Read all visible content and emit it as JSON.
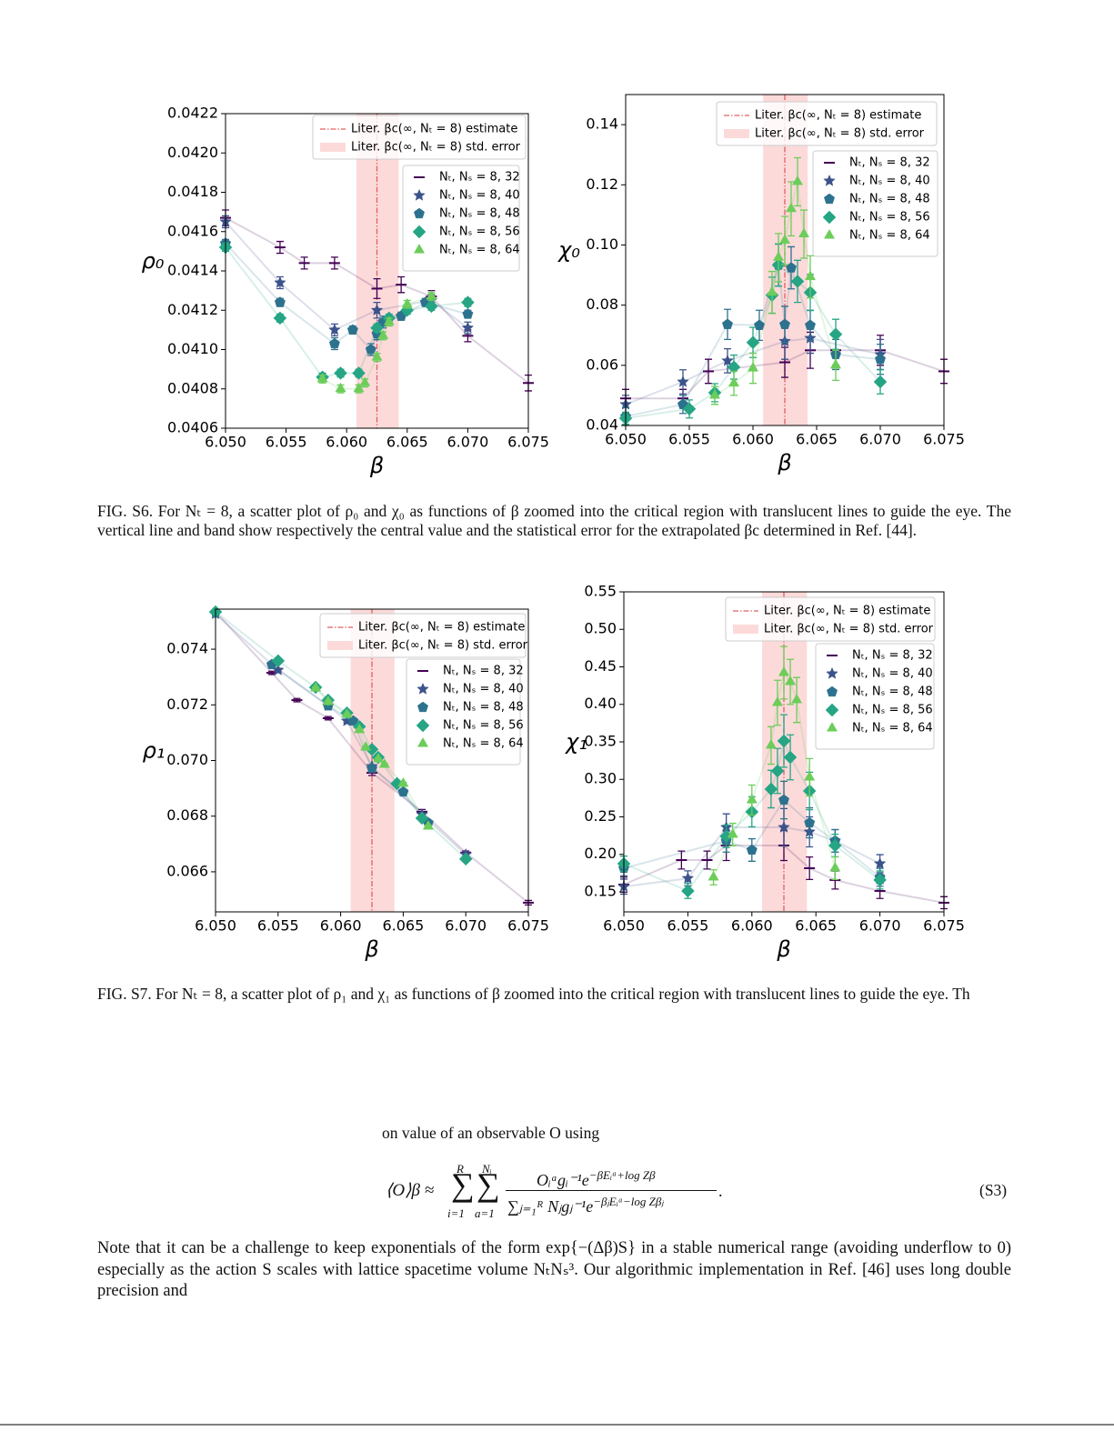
{
  "chart_data": [
    {
      "type": "scatter",
      "xlabel": "β",
      "ylabel": "ρ₀",
      "xlim": [
        6.05,
        6.075
      ],
      "ylim": [
        0.0406,
        0.0422
      ],
      "xticks": [
        {
          "value": 6.05,
          "label": "6.050"
        },
        6.055,
        {
          "value": 6.06,
          "label": "6.060"
        },
        6.065,
        {
          "value": 6.07,
          "label": "6.070"
        },
        6.075
      ],
      "yticks": [
        0.0406,
        0.0408,
        {
          "value": 0.041,
          "label": "0.0410"
        },
        0.0412,
        0.0414,
        0.0416,
        0.0418,
        {
          "value": 0.042,
          "label": "0.0420"
        },
        0.0422
      ],
      "legend": "upper right",
      "reference": {
        "label": "Liter. βc(∞, Nₜ = 8) estimate",
        "value": 6.0625,
        "color": "#e06060"
      },
      "band": {
        "label": "Liter. βc(∞, Nₜ = 8) std. error",
        "range": [
          6.0608,
          6.0643
        ],
        "color": "#fcdada"
      },
      "series": [
        {
          "name": "Nₜ, Nₛ = 8, 32",
          "color": "#440154",
          "marker": "hline",
          "x": [
            6.05,
            6.0545,
            6.0565,
            6.059,
            6.0625,
            6.0645,
            6.067,
            6.07,
            6.075
          ],
          "values": [
            0.04167,
            0.04152,
            0.04144,
            0.04144,
            0.04131,
            0.04133,
            0.04127,
            0.04107,
            0.04083
          ],
          "errors": [
            4e-05,
            3e-05,
            3e-05,
            3e-05,
            5e-05,
            4e-05,
            3e-05,
            3e-05,
            4e-05
          ]
        },
        {
          "name": "Nₜ, Nₛ = 8, 40",
          "color": "#3b528b",
          "marker": "star",
          "x": [
            6.05,
            6.0545,
            6.059,
            6.0625,
            6.067,
            6.07
          ],
          "values": [
            0.04165,
            0.04134,
            0.0411,
            0.0412,
            0.04125,
            0.04111
          ],
          "errors": [
            3e-05,
            3e-05,
            3e-05,
            4e-05,
            3e-05,
            3e-05
          ]
        },
        {
          "name": "Nₜ, Nₛ = 8, 48",
          "color": "#2c728e",
          "marker": "pentagon",
          "x": [
            6.05,
            6.0545,
            6.059,
            6.0605,
            6.062,
            6.0625,
            6.063,
            6.0645,
            6.0665,
            6.07
          ],
          "values": [
            0.04154,
            0.04124,
            0.04103,
            0.0411,
            0.041,
            0.04108,
            0.04114,
            0.04117,
            0.04124,
            0.04118
          ],
          "errors": [
            2e-05,
            2e-05,
            3e-05,
            2e-05,
            3e-05,
            3e-05,
            3e-05,
            2e-05,
            2e-05,
            2e-05
          ]
        },
        {
          "name": "Nₜ, Nₛ = 8, 56",
          "color": "#25a584",
          "marker": "diamond",
          "x": [
            6.05,
            6.0545,
            6.058,
            6.0595,
            6.061,
            6.0625,
            6.0635,
            6.065,
            6.067,
            6.07
          ],
          "values": [
            0.04152,
            0.04116,
            0.04086,
            0.04088,
            0.04088,
            0.04111,
            0.04116,
            0.0412,
            0.04122,
            0.04124
          ],
          "errors": [
            2e-05,
            2e-05,
            2e-05,
            2e-05,
            2e-05,
            2e-05,
            2e-05,
            2e-05,
            2e-05,
            2e-05
          ]
        },
        {
          "name": "Nₜ, Nₛ = 8, 64",
          "color": "#6ccd5a",
          "marker": "triangle",
          "x": [
            6.058,
            6.0595,
            6.061,
            6.0615,
            6.0625,
            6.063,
            6.0635,
            6.065,
            6.067
          ],
          "values": [
            0.04085,
            0.0408,
            0.0408,
            0.04083,
            0.04096,
            0.04107,
            0.04114,
            0.04123,
            0.04127
          ],
          "errors": [
            2e-05,
            2e-05,
            2e-05,
            2e-05,
            2e-05,
            2e-05,
            2e-05,
            2e-05,
            2e-05
          ]
        }
      ]
    },
    {
      "type": "scatter",
      "xlabel": "β",
      "ylabel": "χ₀",
      "xlim": [
        6.05,
        6.075
      ],
      "ylim": [
        0.04,
        0.15
      ],
      "xticks": [
        {
          "value": 6.05,
          "label": "6.050"
        },
        6.055,
        {
          "value": 6.06,
          "label": "6.060"
        },
        6.065,
        {
          "value": 6.07,
          "label": "6.070"
        },
        6.075
      ],
      "yticks": [
        0.04,
        0.06,
        0.08,
        {
          "value": 0.1,
          "label": "0.10"
        },
        0.12,
        0.14
      ],
      "legend": "upper right",
      "reference": {
        "label": "Liter. βc(∞, Nₜ = 8) estimate",
        "value": 6.0625,
        "color": "#e06060"
      },
      "band": {
        "label": "Liter. βc(∞, Nₜ = 8) std. error",
        "range": [
          6.0608,
          6.0643
        ],
        "color": "#fcdada"
      },
      "series": [
        {
          "name": "Nₜ, Nₛ = 8, 32",
          "color": "#440154",
          "marker": "hline",
          "x": [
            6.05,
            6.0545,
            6.0565,
            6.0625,
            6.0645,
            6.0665,
            6.07,
            6.075
          ],
          "values": [
            0.049,
            0.049,
            0.058,
            0.061,
            0.065,
            0.065,
            0.065,
            0.058
          ],
          "errors": [
            0.003,
            0.003,
            0.004,
            0.005,
            0.006,
            0.005,
            0.005,
            0.004
          ]
        },
        {
          "name": "Nₜ, Nₛ = 8, 40",
          "color": "#3b528b",
          "marker": "star",
          "x": [
            6.05,
            6.0545,
            6.058,
            6.0625,
            6.0645,
            6.07
          ],
          "values": [
            0.047,
            0.0545,
            0.0615,
            0.068,
            0.069,
            0.0636
          ],
          "errors": [
            0.003,
            0.004,
            0.004,
            0.006,
            0.005,
            0.005
          ]
        },
        {
          "name": "Nₜ, Nₛ = 8, 48",
          "color": "#2c728e",
          "marker": "pentagon",
          "x": [
            6.05,
            6.0545,
            6.058,
            6.0605,
            6.062,
            6.0625,
            6.063,
            6.0645,
            6.0665,
            6.07
          ],
          "values": [
            0.043,
            0.047,
            0.0736,
            0.0733,
            0.0933,
            0.0736,
            0.0924,
            0.0733,
            0.0636,
            0.062
          ],
          "errors": [
            0.003,
            0.003,
            0.005,
            0.005,
            0.007,
            0.006,
            0.007,
            0.005,
            0.005,
            0.005
          ]
        },
        {
          "name": "Nₜ, Nₛ = 8, 56",
          "color": "#25a584",
          "marker": "diamond",
          "x": [
            6.05,
            6.055,
            6.057,
            6.0585,
            6.06,
            6.0615,
            6.062,
            6.0635,
            6.0645,
            6.0665,
            6.07
          ],
          "values": [
            0.0424,
            0.0455,
            0.0509,
            0.0594,
            0.0676,
            0.0833,
            0.0933,
            0.0879,
            0.0842,
            0.0703,
            0.0545
          ],
          "errors": [
            0.002,
            0.003,
            0.003,
            0.004,
            0.005,
            0.006,
            0.007,
            0.007,
            0.006,
            0.005,
            0.004
          ]
        },
        {
          "name": "Nₜ, Nₛ = 8, 64",
          "color": "#6ccd5a",
          "marker": "triangle",
          "x": [
            6.057,
            6.0585,
            6.06,
            6.0615,
            6.062,
            6.0625,
            6.063,
            6.0635,
            6.064,
            6.0645,
            6.0665
          ],
          "values": [
            0.05,
            0.054,
            0.059,
            0.0842,
            0.0958,
            0.1015,
            0.112,
            0.121,
            0.1036,
            0.0894,
            0.06
          ],
          "errors": [
            0.003,
            0.004,
            0.005,
            0.007,
            0.008,
            0.008,
            0.009,
            0.008,
            0.008,
            0.007,
            0.005
          ]
        }
      ]
    },
    {
      "type": "scatter",
      "xlabel": "β",
      "ylabel": "ρ₁",
      "xlim": [
        6.05,
        6.075
      ],
      "ylim": [
        0.06456,
        0.07544
      ],
      "xticks": [
        {
          "value": 6.05,
          "label": "6.050"
        },
        6.055,
        {
          "value": 6.06,
          "label": "6.060"
        },
        6.065,
        {
          "value": 6.07,
          "label": "6.070"
        },
        6.075
      ],
      "yticks": [
        0.066,
        0.068,
        {
          "value": 0.07,
          "label": "0.070"
        },
        0.072,
        0.074
      ],
      "legend": "upper right",
      "reference": {
        "label": "Liter. βc(∞, Nₜ = 8) estimate",
        "value": 6.0625,
        "color": "#e06060"
      },
      "band": {
        "label": "Liter. βc(∞, Nₜ = 8) std. error",
        "range": [
          6.0608,
          6.0643
        ],
        "color": "#fcdada"
      },
      "series": [
        {
          "name": "Nₜ, Nₛ = 8, 32",
          "color": "#440154",
          "marker": "hline",
          "x": [
            6.05,
            6.0545,
            6.0565,
            6.059,
            6.0625,
            6.0665,
            6.07,
            6.075
          ],
          "values": [
            0.07534,
            0.07315,
            0.07217,
            0.07152,
            0.06956,
            0.06816,
            0.06669,
            0.06489
          ],
          "errors": [
            8e-05,
            6e-05,
            6e-05,
            6e-05,
            0.0001,
            8e-05,
            6e-05,
            8e-05
          ]
        },
        {
          "name": "Nₜ, Nₛ = 8, 40",
          "color": "#3b528b",
          "marker": "star",
          "x": [
            6.05,
            6.055,
            6.059,
            6.0605,
            6.0625,
            6.0665,
            6.07
          ],
          "values": [
            0.07527,
            0.07325,
            0.07197,
            0.07142,
            0.06979,
            0.06806,
            0.06662
          ],
          "errors": [
            6e-05,
            6e-05,
            6e-05,
            6e-05,
            6e-05,
            6e-05,
            6e-05
          ]
        },
        {
          "name": "Nₜ, Nₛ = 8, 48",
          "color": "#2c728e",
          "marker": "pentagon",
          "x": [
            6.0545,
            6.059,
            6.061,
            6.0625,
            6.065,
            6.067
          ],
          "values": [
            0.07345,
            0.07197,
            0.07142,
            0.06972,
            0.06887,
            0.06776
          ],
          "errors": [
            5e-05,
            5e-05,
            5e-05,
            5e-05,
            5e-05,
            5e-05
          ]
        },
        {
          "name": "Nₜ, Nₛ = 8, 56",
          "color": "#25a584",
          "marker": "diamond",
          "x": [
            6.05,
            6.055,
            6.058,
            6.059,
            6.0605,
            6.0615,
            6.0625,
            6.063,
            6.0645,
            6.0665,
            6.07
          ],
          "values": [
            0.07534,
            0.07358,
            0.07263,
            0.07217,
            0.07171,
            0.07122,
            0.0704,
            0.07011,
            0.06917,
            0.06793,
            0.06646
          ],
          "errors": [
            4e-05,
            4e-05,
            4e-05,
            4e-05,
            4e-05,
            4e-05,
            4e-05,
            4e-05,
            4e-05,
            4e-05,
            4e-05
          ]
        },
        {
          "name": "Nₜ, Nₛ = 8, 64",
          "color": "#6ccd5a",
          "marker": "triangle",
          "x": [
            6.058,
            6.059,
            6.0605,
            6.0615,
            6.062,
            6.063,
            6.0635,
            6.065,
            6.067
          ],
          "values": [
            0.0726,
            0.07211,
            0.07165,
            0.0711,
            0.07047,
            0.07005,
            0.06985,
            0.06917,
            0.06763
          ],
          "errors": [
            4e-05,
            4e-05,
            4e-05,
            4e-05,
            4e-05,
            4e-05,
            4e-05,
            4e-05,
            4e-05
          ]
        }
      ]
    },
    {
      "type": "scatter",
      "xlabel": "β",
      "ylabel": "χ₁",
      "xlim": [
        6.05,
        6.075
      ],
      "ylim": [
        0.1233,
        0.55
      ],
      "xticks": [
        {
          "value": 6.05,
          "label": "6.050"
        },
        6.055,
        {
          "value": 6.06,
          "label": "6.060"
        },
        6.065,
        {
          "value": 6.07,
          "label": "6.070"
        },
        6.075
      ],
      "yticks": [
        0.15,
        {
          "value": 0.2,
          "label": "0.20"
        },
        0.25,
        {
          "value": 0.3,
          "label": "0.30"
        },
        0.35,
        {
          "value": 0.4,
          "label": "0.40"
        },
        0.45,
        {
          "value": 0.5,
          "label": "0.50"
        },
        0.55
      ],
      "legend": "upper right",
      "reference": {
        "label": "Liter. βc(∞, Nₜ = 8) estimate",
        "value": 6.0625,
        "color": "#e06060"
      },
      "band": {
        "label": "Liter. βc(∞, Nₜ = 8) std. error",
        "range": [
          6.0608,
          6.0643
        ],
        "color": "#fcdada"
      },
      "series": [
        {
          "name": "Nₜ, Nₛ = 8, 32",
          "color": "#440154",
          "marker": "hline",
          "x": [
            6.05,
            6.0545,
            6.0565,
            6.058,
            6.0625,
            6.0645,
            6.0665,
            6.07,
            6.075
          ],
          "values": [
            0.1597,
            0.1924,
            0.1924,
            0.2118,
            0.2118,
            0.1815,
            0.1658,
            0.1512,
            0.1355
          ],
          "errors": [
            0.01,
            0.012,
            0.012,
            0.02,
            0.02,
            0.015,
            0.012,
            0.01,
            0.008
          ]
        },
        {
          "name": "Nₜ, Nₛ = 8, 40",
          "color": "#3b528b",
          "marker": "star",
          "x": [
            6.05,
            6.055,
            6.058,
            6.0625,
            6.0645,
            6.0665,
            6.07
          ],
          "values": [
            0.157,
            0.168,
            0.236,
            0.236,
            0.23,
            0.218,
            0.1876
          ],
          "errors": [
            0.01,
            0.01,
            0.018,
            0.025,
            0.02,
            0.015,
            0.012
          ]
        },
        {
          "name": "Nₜ, Nₛ = 8, 48",
          "color": "#2c728e",
          "marker": "pentagon",
          "x": [
            6.05,
            6.058,
            6.06,
            6.0625,
            6.0645,
            6.0665,
            6.07
          ],
          "values": [
            0.1815,
            0.218,
            0.2058,
            0.2724,
            0.242,
            0.218,
            0.1694
          ],
          "errors": [
            0.01,
            0.015,
            0.015,
            0.025,
            0.02,
            0.015,
            0.012
          ]
        },
        {
          "name": "Nₜ, Nₛ = 8, 56",
          "color": "#25a584",
          "marker": "diamond",
          "x": [
            6.05,
            6.055,
            6.058,
            6.06,
            6.0615,
            6.062,
            6.0625,
            6.063,
            6.0645,
            6.0665,
            6.07
          ],
          "values": [
            0.1876,
            0.1512,
            0.224,
            0.2567,
            0.287,
            0.3112,
            0.3512,
            0.3294,
            0.2845,
            0.2118,
            0.1658
          ],
          "errors": [
            0.01,
            0.01,
            0.015,
            0.02,
            0.025,
            0.03,
            0.035,
            0.03,
            0.025,
            0.015,
            0.012
          ]
        },
        {
          "name": "Nₜ, Nₛ = 8, 64",
          "color": "#6ccd5a",
          "marker": "triangle",
          "x": [
            6.057,
            6.0585,
            6.06,
            6.0615,
            6.062,
            6.0625,
            6.063,
            6.0635,
            6.0645,
            6.0665
          ],
          "values": [
            0.1694,
            0.2264,
            0.2724,
            0.3452,
            0.4021,
            0.4421,
            0.43,
            0.4058,
            0.3027,
            0.1815
          ],
          "errors": [
            0.01,
            0.015,
            0.02,
            0.025,
            0.03,
            0.035,
            0.03,
            0.03,
            0.025,
            0.015
          ]
        }
      ]
    }
  ],
  "captions": [
    "FIG. S6. For Nₜ = 8, a scatter plot of ρ₀ and χ₀ as functions of β zoomed into the critical region with translucent lines to guide the eye. The vertical line and band show respectively the central value and the statistical error for the extrapolated βc determined in Ref. [44].",
    "FIG. S7. For Nₜ = 8, a scatter plot of ρ₁ and χ₁ as functions of β zoomed into the critical region with translucent lines to guide the eye. Th"
  ],
  "intro": "on value of an observable O using",
  "equation": {
    "lhs": "⟨O⟩β ≈",
    "sum1_upper": "R",
    "sum1_lower": "i=1",
    "sum2_upper": "Nᵢ",
    "sum2_lower": "a=1",
    "numerator": "Oᵢᵃgᵢ⁻¹e",
    "numerator_exp": "−βEᵢᵃ+log Zβ",
    "denominator": "∑ⱼ₌₁ᴿ Nⱼgⱼ⁻¹e",
    "denominator_exp": "−βⱼEᵢᵃ−log Zβⱼ",
    "number": "(S3)"
  },
  "paragraph": "Note that it can be a challenge to keep exponentials of the form exp{−(Δβ)S} in a stable numerical range (avoiding underflow to 0) especially as the action S scales with lattice spacetime volume NₜNₛ³. Our algorithmic implementation in Ref. [46] uses long double precision and"
}
